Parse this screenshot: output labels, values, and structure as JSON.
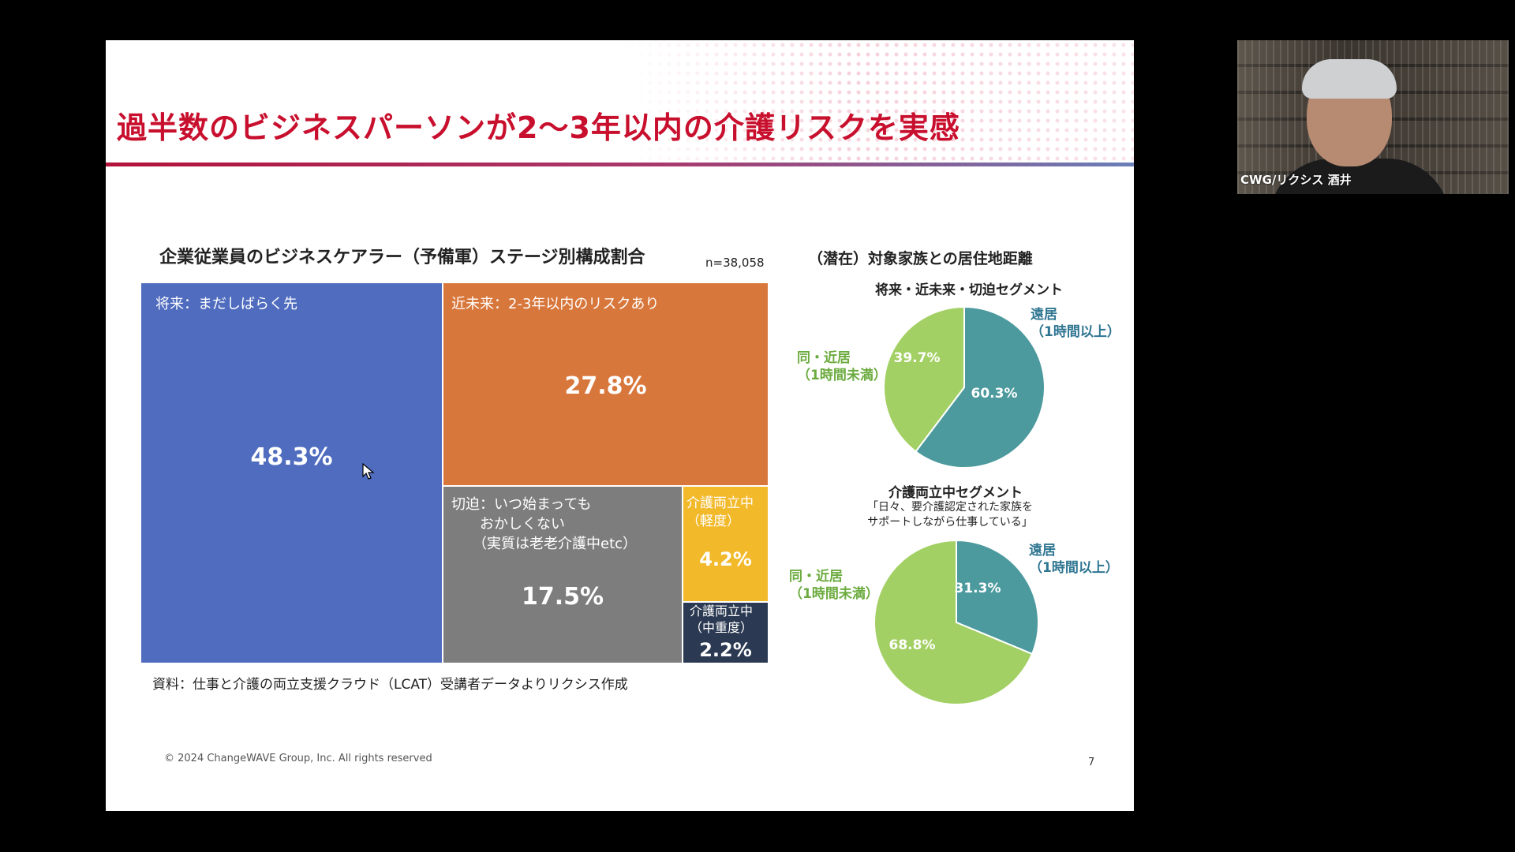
{
  "slide": {
    "title": "過半数のビジネスパーソンが2〜3年以内の介護リスクを実感",
    "copyright": "© 2024 ChangeWAVE Group, Inc. All rights reserved",
    "page_number": "7"
  },
  "treemap": {
    "title": "企業従業員のビジネスケアラー（予備軍）ステージ別構成割合",
    "n_label": "n=38,058",
    "source": "資料：仕事と介護の両立支援クラウド（LCAT）受講者データよりリクシス作成",
    "tiles": [
      {
        "label": "将来：まだしばらく先",
        "value": "48.3%",
        "color": "#4f6cbf"
      },
      {
        "label": "近未来：2-3年以内のリスクあり",
        "value": "27.8%",
        "color": "#d8773b"
      },
      {
        "label": "切迫：いつ始まっても\n　　おかしくない\n　　（実質は老老介護中etc）",
        "value": "17.5%",
        "color": "#7d7d7d"
      },
      {
        "label": "介護両立中\n（軽度）",
        "value": "4.2%",
        "color": "#f2b92b"
      },
      {
        "label": "介護両立中\n（中重度）",
        "value": "2.2%",
        "color": "#2b3a52"
      }
    ]
  },
  "pies": {
    "section_title": "（潜在）対象家族との居住地距離",
    "top": {
      "title": "将来・近未来・切迫セグメント",
      "near_label": "同・近居\n（1時間未満）",
      "far_label": "遠居\n（1時間以上）",
      "near_pct": "39.7%",
      "far_pct": "60.3%",
      "near_value": 39.7,
      "far_value": 60.3
    },
    "bottom": {
      "title": "介護両立中セグメント",
      "subtitle": "「日々、要介護認定された家族を\nサポートしながら仕事している」",
      "near_label": "同・近居\n（1時間未満）",
      "far_label": "遠居\n（1時間以上）",
      "near_pct": "68.8%",
      "far_pct": "31.3%",
      "near_value": 68.8,
      "far_value": 31.3
    },
    "colors": {
      "near": "#a3d064",
      "far": "#4c9a9e"
    }
  },
  "webcam": {
    "name": "CWG/リクシス 酒井"
  }
}
